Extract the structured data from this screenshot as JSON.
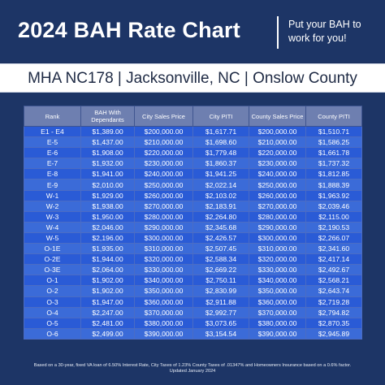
{
  "header": {
    "title": "2024 BAH Rate Chart",
    "tagline": "Put your BAH to work for you!"
  },
  "location": "MHA NC178 | Jacksonville, NC | Onslow County",
  "table": {
    "headers": [
      "Rank",
      "BAH With Dependants",
      "City Sales Price",
      "City PITI",
      "County Sales Price",
      "County PITI"
    ],
    "rows": [
      [
        "E1 - E4",
        "$1,389.00",
        "$200,000.00",
        "$1,617.71",
        "$200,000.00",
        "$1,510.71"
      ],
      [
        "E-5",
        "$1,437.00",
        "$210,000.00",
        "$1,698.60",
        "$210,000.00",
        "$1,586.25"
      ],
      [
        "E-6",
        "$1,908.00",
        "$220,000.00",
        "$1,779.48",
        "$220,000.00",
        "$1,661.78"
      ],
      [
        "E-7",
        "$1,932.00",
        "$230,000.00",
        "$1,860.37",
        "$230,000.00",
        "$1,737.32"
      ],
      [
        "E-8",
        "$1,941.00",
        "$240,000.00",
        "$1,941.25",
        "$240,000.00",
        "$1,812.85"
      ],
      [
        "E-9",
        "$2,010.00",
        "$250,000.00",
        "$2,022.14",
        "$250,000.00",
        "$1,888.39"
      ],
      [
        "W-1",
        "$1,929.00",
        "$260,000.00",
        "$2,103.02",
        "$260,000.00",
        "$1,963.92"
      ],
      [
        "W-2",
        "$1,938.00",
        "$270,000.00",
        "$2,183.91",
        "$270,000.00",
        "$2,039.46"
      ],
      [
        "W-3",
        "$1,950.00",
        "$280,000.00",
        "$2,264.80",
        "$280,000.00",
        "$2,115.00"
      ],
      [
        "W-4",
        "$2,046.00",
        "$290,000.00",
        "$2,345.68",
        "$290,000.00",
        "$2,190.53"
      ],
      [
        "W-5",
        "$2,196.00",
        "$300,000.00",
        "$2,426.57",
        "$300,000.00",
        "$2,266.07"
      ],
      [
        "O-1E",
        "$1,935.00",
        "$310,000.00",
        "$2,507.45",
        "$310,000.00",
        "$2,341.60"
      ],
      [
        "O-2E",
        "$1,944.00",
        "$320,000.00",
        "$2,588.34",
        "$320,000.00",
        "$2,417.14"
      ],
      [
        "O-3E",
        "$2,064.00",
        "$330,000.00",
        "$2,669.22",
        "$330,000.00",
        "$2,492.67"
      ],
      [
        "O-1",
        "$1,902.00",
        "$340,000.00",
        "$2,750.11",
        "$340,000.00",
        "$2,568.21"
      ],
      [
        "O-2",
        "$1,902.00",
        "$350,000.00",
        "$2,830.99",
        "$350,000.00",
        "$2,643.74"
      ],
      [
        "O-3",
        "$1,947.00",
        "$360,000.00",
        "$2,911.88",
        "$360,000.00",
        "$2,719.28"
      ],
      [
        "O-4",
        "$2,247.00",
        "$370,000.00",
        "$2,992.77",
        "$370,000.00",
        "$2,794.82"
      ],
      [
        "O-5",
        "$2,481.00",
        "$380,000.00",
        "$3,073.65",
        "$380,000.00",
        "$2,870.35"
      ],
      [
        "O-6",
        "$2,499.00",
        "$390,000.00",
        "$3,154.54",
        "$390,000.00",
        "$2,945.89"
      ]
    ]
  },
  "footnote": {
    "line1": "Based on a 30-year, fixed VA loan of 6.50% Interest Rate, City Taxes of 1.23% County Taxes of .01347% and Homeowners Insurance based on a 0.6% factor.",
    "line2": "Updated January 2024"
  },
  "colors": {
    "navy": "#1d3566",
    "header_row": "#6e7fb0",
    "row_dark": "#2a5bd6",
    "row_light": "#3b6bd8"
  }
}
